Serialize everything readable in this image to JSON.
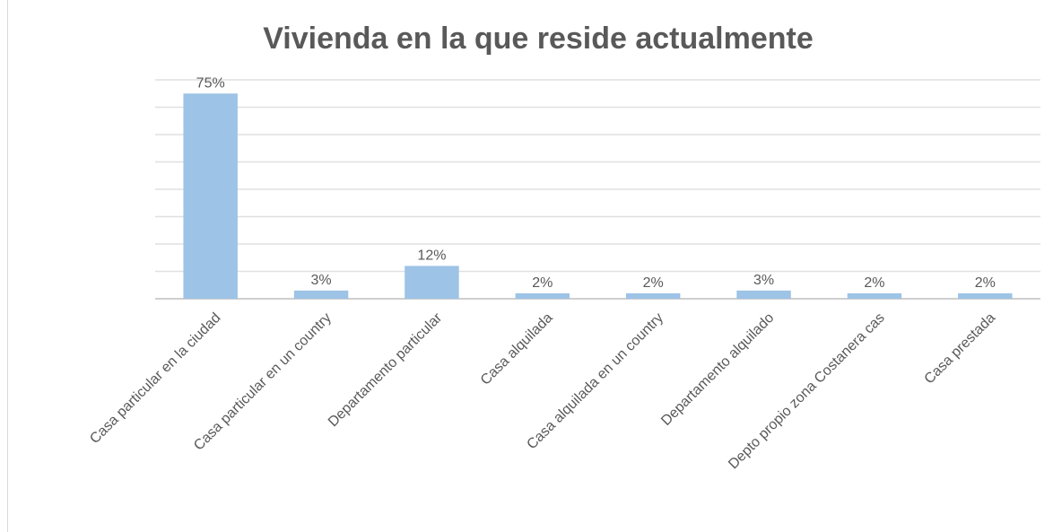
{
  "chart_data": {
    "type": "bar",
    "title": "Vivienda en la que reside actualmente",
    "categories": [
      "Casa particular en la ciudad",
      "Casa particular en un country",
      "Departamento particular",
      "Casa alquilada",
      "Casa alquilada en un country",
      "Departamento alquilado",
      "Depto propio zona Costanera cas",
      "Casa prestada"
    ],
    "values": [
      75,
      3,
      12,
      2,
      2,
      3,
      2,
      2
    ],
    "value_labels": [
      "75%",
      "3%",
      "12%",
      "2%",
      "2%",
      "3%",
      "2%",
      "2%"
    ],
    "color": "#9dc3e6",
    "ylim": [
      0,
      80
    ],
    "yticks": [
      0,
      10,
      20,
      30,
      40,
      50,
      60,
      70,
      80
    ],
    "grid": true
  }
}
